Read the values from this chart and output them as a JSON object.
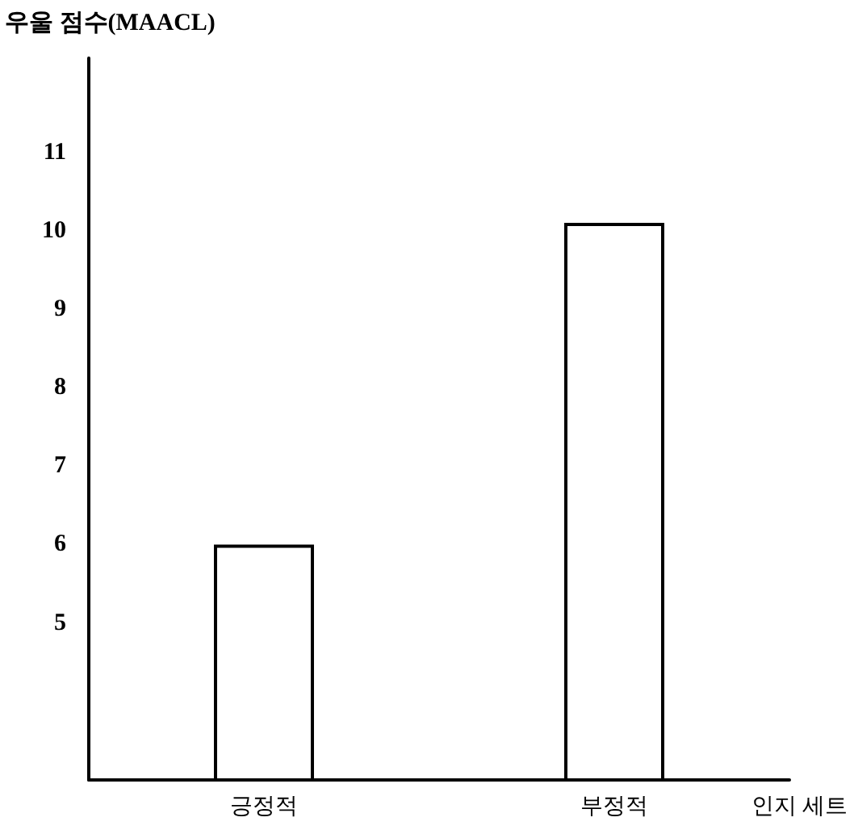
{
  "chart_data": {
    "type": "bar",
    "ylabel": "우울 점수(MAACL)",
    "xlabel": "인지 세트",
    "categories": [
      "긍정적",
      "부정적"
    ],
    "values": [
      6,
      10.1
    ],
    "color": "#ffffff",
    "ylim": [
      3,
      12.2
    ],
    "yticks": [
      5,
      6,
      7,
      8,
      9,
      10,
      11
    ],
    "grid": false
  }
}
